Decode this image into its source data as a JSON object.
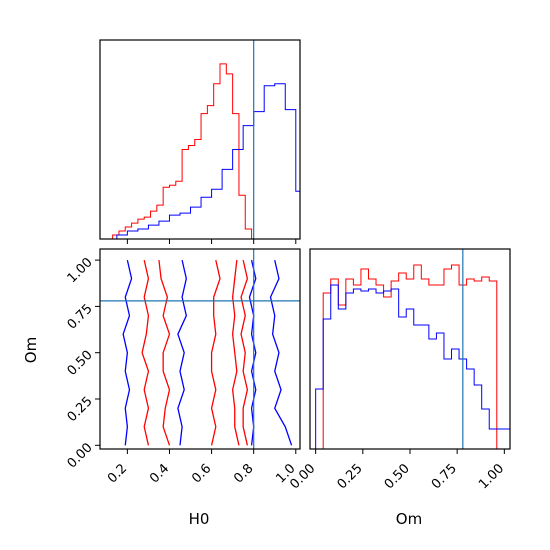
{
  "chart_data": [
    {
      "type": "histogram",
      "panel": "H0 marginal",
      "xlim": [
        0.07,
        1.02
      ],
      "truth": 0.8,
      "series": [
        {
          "color": "#ff0000",
          "edges": [
            0.13,
            0.16,
            0.19,
            0.22,
            0.25,
            0.28,
            0.31,
            0.34,
            0.37,
            0.4,
            0.43,
            0.46,
            0.49,
            0.52,
            0.55,
            0.58,
            0.61,
            0.64,
            0.67,
            0.7,
            0.73,
            0.76,
            0.79
          ],
          "counts": [
            0.02,
            0.04,
            0.06,
            0.08,
            0.1,
            0.11,
            0.14,
            0.17,
            0.26,
            0.27,
            0.29,
            0.45,
            0.47,
            0.5,
            0.63,
            0.67,
            0.78,
            0.88,
            0.83,
            0.63,
            0.22,
            0.05
          ]
        },
        {
          "color": "#0000ff",
          "edges": [
            0.15,
            0.2,
            0.25,
            0.3,
            0.35,
            0.4,
            0.45,
            0.5,
            0.55,
            0.6,
            0.65,
            0.7,
            0.75,
            0.8,
            0.85,
            0.9,
            0.95,
            1.0,
            1.02
          ],
          "counts": [
            0.02,
            0.04,
            0.05,
            0.07,
            0.09,
            0.12,
            0.13,
            0.16,
            0.21,
            0.25,
            0.35,
            0.45,
            0.57,
            0.64,
            0.77,
            0.78,
            0.65,
            0.24
          ]
        }
      ]
    },
    {
      "type": "contour",
      "panel": "H0 vs Om",
      "xlabel": "H0",
      "ylabel": "Om",
      "xlim": [
        0.07,
        1.02
      ],
      "ylim": [
        -0.02,
        1.06
      ],
      "xticks": [
        "0.2",
        "0.4",
        "0.6",
        "0.8",
        "1.0"
      ],
      "yticks": [
        "0.00",
        "0.25",
        "0.50",
        "0.75",
        "1.00"
      ],
      "truth": {
        "H0": 0.8,
        "Om": 0.78
      },
      "series": [
        {
          "color": "#ff0000",
          "contours": [
            [
              [
                0.28,
                1.0
              ],
              [
                0.3,
                0.9
              ],
              [
                0.28,
                0.8
              ],
              [
                0.3,
                0.7
              ],
              [
                0.29,
                0.6
              ],
              [
                0.27,
                0.5
              ],
              [
                0.3,
                0.4
              ],
              [
                0.28,
                0.3
              ],
              [
                0.3,
                0.2
              ],
              [
                0.28,
                0.1
              ],
              [
                0.3,
                0.0
              ]
            ],
            [
              [
                0.35,
                1.0
              ],
              [
                0.36,
                0.9
              ],
              [
                0.39,
                0.8
              ],
              [
                0.37,
                0.7
              ],
              [
                0.4,
                0.6
              ],
              [
                0.37,
                0.5
              ],
              [
                0.37,
                0.4
              ],
              [
                0.4,
                0.3
              ],
              [
                0.38,
                0.2
              ],
              [
                0.37,
                0.1
              ],
              [
                0.4,
                0.0
              ]
            ],
            [
              [
                0.62,
                1.0
              ],
              [
                0.64,
                0.9
              ],
              [
                0.61,
                0.8
              ],
              [
                0.61,
                0.7
              ],
              [
                0.62,
                0.6
              ],
              [
                0.6,
                0.5
              ],
              [
                0.6,
                0.4
              ],
              [
                0.62,
                0.3
              ],
              [
                0.6,
                0.2
              ],
              [
                0.62,
                0.1
              ],
              [
                0.6,
                0.0
              ]
            ],
            [
              [
                0.72,
                1.0
              ],
              [
                0.71,
                0.9
              ],
              [
                0.7,
                0.8
              ],
              [
                0.71,
                0.7
              ],
              [
                0.7,
                0.6
              ],
              [
                0.71,
                0.5
              ],
              [
                0.72,
                0.4
              ],
              [
                0.7,
                0.3
              ],
              [
                0.71,
                0.2
              ],
              [
                0.71,
                0.1
              ],
              [
                0.73,
                0.0
              ]
            ],
            [
              [
                0.75,
                1.0
              ],
              [
                0.77,
                0.9
              ],
              [
                0.74,
                0.8
              ],
              [
                0.76,
                0.7
              ],
              [
                0.74,
                0.6
              ],
              [
                0.76,
                0.5
              ],
              [
                0.75,
                0.4
              ],
              [
                0.77,
                0.3
              ],
              [
                0.75,
                0.2
              ],
              [
                0.75,
                0.1
              ],
              [
                0.77,
                0.0
              ]
            ]
          ]
        },
        {
          "color": "#0000ff",
          "contours": [
            [
              [
                0.2,
                1.0
              ],
              [
                0.22,
                0.9
              ],
              [
                0.19,
                0.8
              ],
              [
                0.21,
                0.7
              ],
              [
                0.18,
                0.6
              ],
              [
                0.2,
                0.5
              ],
              [
                0.19,
                0.4
              ],
              [
                0.21,
                0.3
              ],
              [
                0.19,
                0.2
              ],
              [
                0.2,
                0.1
              ],
              [
                0.19,
                0.0
              ]
            ],
            [
              [
                0.46,
                1.0
              ],
              [
                0.48,
                0.9
              ],
              [
                0.46,
                0.8
              ],
              [
                0.48,
                0.7
              ],
              [
                0.44,
                0.6
              ],
              [
                0.47,
                0.5
              ],
              [
                0.45,
                0.4
              ],
              [
                0.47,
                0.3
              ],
              [
                0.44,
                0.2
              ],
              [
                0.46,
                0.1
              ],
              [
                0.45,
                0.0
              ]
            ],
            [
              [
                0.79,
                1.0
              ],
              [
                0.81,
                0.9
              ],
              [
                0.78,
                0.8
              ],
              [
                0.8,
                0.7
              ],
              [
                0.79,
                0.6
              ],
              [
                0.81,
                0.5
              ],
              [
                0.79,
                0.4
              ],
              [
                0.81,
                0.3
              ],
              [
                0.79,
                0.2
              ],
              [
                0.8,
                0.1
              ],
              [
                0.79,
                0.0
              ]
            ],
            [
              [
                0.9,
                1.0
              ],
              [
                0.92,
                0.9
              ],
              [
                0.88,
                0.8
              ],
              [
                0.9,
                0.7
              ],
              [
                0.89,
                0.6
              ],
              [
                0.92,
                0.5
              ],
              [
                0.9,
                0.4
              ],
              [
                0.93,
                0.3
              ],
              [
                0.9,
                0.2
              ],
              [
                0.95,
                0.1
              ],
              [
                0.98,
                0.0
              ]
            ]
          ]
        }
      ]
    },
    {
      "type": "histogram",
      "panel": "Om marginal",
      "xlabel": "Om",
      "xlim": [
        -0.03,
        1.03
      ],
      "xticks": [
        "0.00",
        "0.25",
        "0.50",
        "0.75",
        "1.00"
      ],
      "truth": 0.78,
      "series": [
        {
          "color": "#ff0000",
          "edges": [
            0.0,
            0.04,
            0.08,
            0.12,
            0.16,
            0.2,
            0.24,
            0.28,
            0.32,
            0.36,
            0.4,
            0.44,
            0.48,
            0.52,
            0.56,
            0.6,
            0.64,
            0.68,
            0.72,
            0.76,
            0.8,
            0.84,
            0.88,
            0.92,
            0.96,
            1.0
          ],
          "counts": [
            0.0,
            0.78,
            0.85,
            0.72,
            0.85,
            0.82,
            0.9,
            0.85,
            0.82,
            0.76,
            0.84,
            0.88,
            0.85,
            0.92,
            0.85,
            0.82,
            0.82,
            0.9,
            0.92,
            0.82,
            0.85,
            0.84,
            0.86,
            0.84,
            0.0
          ]
        },
        {
          "color": "#0000ff",
          "edges": [
            0.0,
            0.04,
            0.08,
            0.12,
            0.16,
            0.2,
            0.24,
            0.28,
            0.32,
            0.36,
            0.4,
            0.44,
            0.48,
            0.52,
            0.56,
            0.6,
            0.64,
            0.68,
            0.72,
            0.76,
            0.8,
            0.84,
            0.88,
            0.92,
            0.96,
            1.0,
            1.03
          ],
          "counts": [
            0.3,
            0.65,
            0.82,
            0.7,
            0.78,
            0.8,
            0.79,
            0.8,
            0.78,
            0.79,
            0.8,
            0.66,
            0.7,
            0.62,
            0.62,
            0.55,
            0.58,
            0.45,
            0.5,
            0.45,
            0.4,
            0.32,
            0.2,
            0.1,
            0.1,
            0.1
          ]
        }
      ]
    }
  ],
  "colors": {
    "truth_line": "#1f77b4",
    "frame": "#000000"
  }
}
